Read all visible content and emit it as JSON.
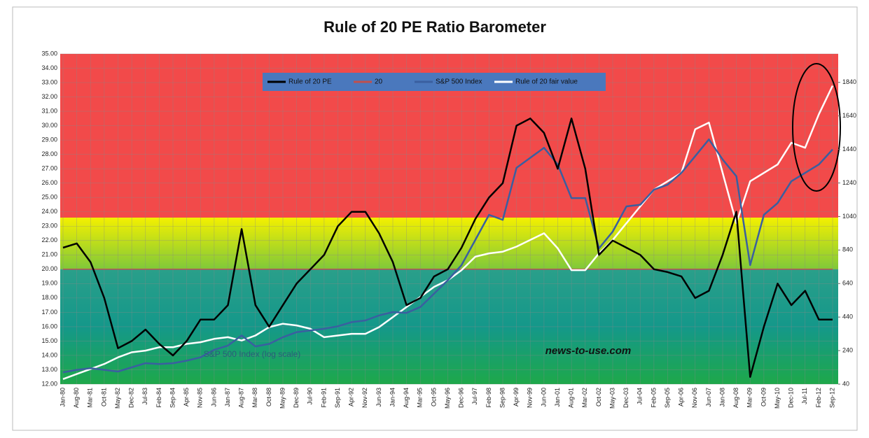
{
  "chart_data": {
    "type": "line",
    "title": "Rule of 20 PE Ratio Barometer",
    "annotations": [
      "news-to-use.com",
      "S&P 500 Index (log scale)"
    ],
    "categories": [
      "Jan-80",
      "Aug-80",
      "Mar-81",
      "Oct-81",
      "May-82",
      "Dec-82",
      "Jul-83",
      "Feb-84",
      "Sep-84",
      "Apr-85",
      "Nov-85",
      "Jun-86",
      "Jan-87",
      "Aug-87",
      "Mar-88",
      "Oct-88",
      "May-89",
      "Dec-89",
      "Jul-90",
      "Feb-91",
      "Sep-91",
      "Apr-92",
      "Nov-92",
      "Jun-93",
      "Jan-94",
      "Aug-94",
      "Mar-95",
      "Oct-95",
      "May-96",
      "Dec-96",
      "Jul-97",
      "Feb-98",
      "Sep-98",
      "Apr-99",
      "Nov-99",
      "Jun-00",
      "Jan-01",
      "Aug-01",
      "Mar-02",
      "Oct-02",
      "May-03",
      "Dec-03",
      "Jul-04",
      "Feb-05",
      "Sep-05",
      "Apr-06",
      "Nov-06",
      "Jun-07",
      "Jan-08",
      "Aug-08",
      "Mar-09",
      "Oct-09",
      "May-10",
      "Dec-10",
      "Jul-11",
      "Feb-12",
      "Sep-12"
    ],
    "series": [
      {
        "name": "Rule of 20 PE",
        "color": "#000000",
        "values": [
          21.5,
          21.8,
          20.5,
          18,
          14.5,
          15,
          15.8,
          14.8,
          14,
          15,
          16.5,
          16.5,
          17.5,
          22.8,
          17.5,
          16,
          17.5,
          19,
          20,
          21,
          23,
          24,
          24,
          22.5,
          20.5,
          17.5,
          18,
          19.5,
          20,
          21.5,
          23.5,
          25,
          26,
          30,
          30.5,
          29.5,
          27,
          30.5,
          27,
          21,
          22,
          21.5,
          21,
          20,
          19.8,
          19.5,
          18,
          18.5,
          21,
          24,
          12.5,
          16,
          19,
          17.5,
          18.5,
          16.5,
          16.5
        ]
      },
      {
        "name": "20",
        "color": "#c0504d",
        "values": [
          20,
          20,
          20,
          20,
          20,
          20,
          20,
          20,
          20,
          20,
          20,
          20,
          20,
          20,
          20,
          20,
          20,
          20,
          20,
          20,
          20,
          20,
          20,
          20,
          20,
          20,
          20,
          20,
          20,
          20,
          20,
          20,
          20,
          20,
          20,
          20,
          20,
          20,
          20,
          20,
          20,
          20,
          20,
          20,
          20,
          20,
          20,
          20,
          20,
          20,
          20,
          20,
          20,
          20,
          20,
          20,
          20
        ]
      },
      {
        "name": "S&P 500 Index",
        "color": "#3a5fa0",
        "axis": "y2",
        "values": [
          110,
          125,
          135,
          125,
          115,
          140,
          165,
          160,
          165,
          180,
          200,
          245,
          270,
          330,
          265,
          280,
          320,
          350,
          360,
          370,
          385,
          410,
          420,
          450,
          470,
          465,
          500,
          580,
          660,
          750,
          900,
          1050,
          1020,
          1330,
          1390,
          1450,
          1350,
          1150,
          1150,
          850,
          950,
          1100,
          1110,
          1200,
          1230,
          1300,
          1400,
          1500,
          1380,
          1280,
          750,
          1050,
          1120,
          1250,
          1300,
          1350,
          1440
        ]
      },
      {
        "name": "Rule of 20 fair value",
        "color": "#ffffff",
        "axis": "y2",
        "values": [
          70,
          100,
          130,
          160,
          200,
          230,
          240,
          260,
          260,
          280,
          290,
          310,
          320,
          300,
          330,
          380,
          400,
          390,
          370,
          320,
          330,
          340,
          340,
          380,
          440,
          500,
          560,
          620,
          660,
          720,
          800,
          820,
          830,
          860,
          900,
          940,
          850,
          720,
          720,
          820,
          900,
          1000,
          1100,
          1200,
          1250,
          1300,
          1560,
          1600,
          1300,
          1000,
          1250,
          1300,
          1350,
          1480,
          1450,
          1650,
          1820
        ]
      }
    ],
    "ylim": [
      12,
      35
    ],
    "yticks": [
      {
        "value": 12,
        "label": "12.00"
      },
      {
        "value": 13,
        "label": "13.00"
      },
      {
        "value": 14,
        "label": "14.00"
      },
      {
        "value": 15,
        "label": "15.00"
      },
      {
        "value": 16,
        "label": "16.00"
      },
      {
        "value": 17,
        "label": "17.00"
      },
      {
        "value": 18,
        "label": "18.00"
      },
      {
        "value": 19,
        "label": "19.00"
      },
      {
        "value": 20,
        "label": "20.00"
      },
      {
        "value": 21,
        "label": "21.00"
      },
      {
        "value": 22,
        "label": "22.00"
      },
      {
        "value": 23,
        "label": "23.00"
      },
      {
        "value": 24,
        "label": "24.00"
      },
      {
        "value": 25,
        "label": "25.00"
      },
      {
        "value": 26,
        "label": "26.00"
      },
      {
        "value": 27,
        "label": "27.00"
      },
      {
        "value": 28,
        "label": "28.00"
      },
      {
        "value": 29,
        "label": "29.00"
      },
      {
        "value": 30,
        "label": "30.00"
      },
      {
        "value": 31,
        "label": "31.00"
      },
      {
        "value": 32,
        "label": "32.00"
      },
      {
        "value": 33,
        "label": "33.00"
      },
      {
        "value": 34,
        "label": "34.00"
      },
      {
        "value": 35,
        "label": "35.00"
      }
    ],
    "y2lim": [
      40,
      2010
    ],
    "y2ticks": [
      40,
      240,
      440,
      640,
      840,
      1040,
      1240,
      1440,
      1640,
      1840
    ],
    "grid": true
  }
}
